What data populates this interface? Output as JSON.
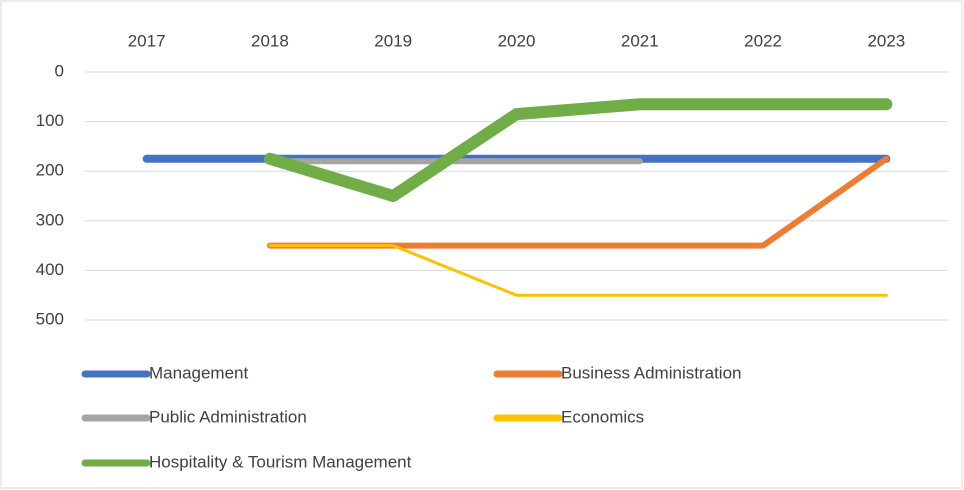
{
  "chart_data": {
    "type": "line",
    "categories": [
      "2017",
      "2018",
      "2019",
      "2020",
      "2021",
      "2022",
      "2023"
    ],
    "series": [
      {
        "name": "Management",
        "color": "#4472c4",
        "values": [
          175,
          175,
          175,
          175,
          175,
          175,
          175
        ]
      },
      {
        "name": "Business Administration",
        "color": "#ed7d31",
        "values": [
          null,
          350,
          350,
          350,
          350,
          350,
          175
        ]
      },
      {
        "name": "Public Administration",
        "color": "#a5a5a5",
        "values": [
          null,
          180,
          180,
          180,
          180,
          null,
          null
        ]
      },
      {
        "name": "Economics",
        "color": "#ffc000",
        "values": [
          null,
          350,
          350,
          450,
          450,
          450,
          450
        ]
      },
      {
        "name": "Hospitality & Tourism Management",
        "color": "#70ad47",
        "values": [
          null,
          175,
          250,
          85,
          65,
          65,
          65
        ]
      }
    ],
    "ylim": [
      0,
      500
    ],
    "yticks": [
      0,
      100,
      200,
      300,
      400,
      500
    ],
    "y_inverted": true,
    "x_axis_position": "top",
    "grid": true,
    "legend": "bottom"
  }
}
